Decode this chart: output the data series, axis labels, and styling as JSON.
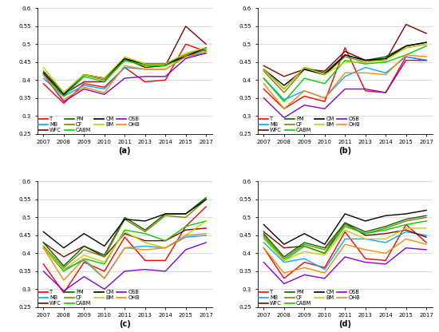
{
  "years": [
    2007,
    2008,
    2009,
    2010,
    2011,
    2013,
    2014,
    2015,
    2017
  ],
  "series_colors": {
    "T": "#ff0000",
    "MB": "#00aaff",
    "WFC": "#800000",
    "PM": "#006400",
    "CF": "#808000",
    "CABM": "#00cc00",
    "CM": "#000000",
    "BM": "#cccc00",
    "OSB": "#8800cc",
    "OHB": "#ff8800"
  },
  "panel_a": {
    "T": [
      0.39,
      0.335,
      0.39,
      0.38,
      0.435,
      0.395,
      0.4,
      0.5,
      0.48
    ],
    "MB": [
      0.405,
      0.355,
      0.385,
      0.375,
      0.435,
      0.43,
      0.43,
      0.465,
      0.475
    ],
    "WFC": [
      0.415,
      0.36,
      0.395,
      0.395,
      0.46,
      0.435,
      0.44,
      0.55,
      0.5
    ],
    "PM": [
      0.425,
      0.365,
      0.415,
      0.405,
      0.455,
      0.445,
      0.445,
      0.47,
      0.49
    ],
    "CF": [
      0.42,
      0.355,
      0.415,
      0.4,
      0.455,
      0.44,
      0.44,
      0.47,
      0.49
    ],
    "CABM": [
      0.415,
      0.355,
      0.41,
      0.395,
      0.455,
      0.44,
      0.44,
      0.465,
      0.485
    ],
    "CM": [
      0.42,
      0.36,
      0.415,
      0.405,
      0.46,
      0.445,
      0.445,
      0.465,
      0.49
    ],
    "BM": [
      0.435,
      0.365,
      0.415,
      0.405,
      0.465,
      0.445,
      0.445,
      0.475,
      0.49
    ],
    "OSB": [
      0.415,
      0.34,
      0.375,
      0.36,
      0.405,
      0.41,
      0.41,
      0.46,
      0.475
    ],
    "OHB": [
      0.415,
      0.345,
      0.38,
      0.365,
      0.44,
      0.43,
      0.43,
      0.465,
      0.48
    ]
  },
  "panel_b": {
    "T": [
      0.375,
      0.32,
      0.355,
      0.34,
      0.49,
      0.37,
      0.365,
      0.465,
      0.455
    ],
    "MB": [
      0.405,
      0.345,
      0.37,
      0.35,
      0.41,
      0.435,
      0.42,
      0.465,
      0.455
    ],
    "WFC": [
      0.44,
      0.41,
      0.43,
      0.425,
      0.48,
      0.455,
      0.455,
      0.555,
      0.53
    ],
    "PM": [
      0.43,
      0.375,
      0.435,
      0.42,
      0.47,
      0.455,
      0.465,
      0.495,
      0.505
    ],
    "CF": [
      0.425,
      0.365,
      0.43,
      0.415,
      0.465,
      0.45,
      0.46,
      0.49,
      0.5
    ],
    "CABM": [
      0.405,
      0.34,
      0.405,
      0.39,
      0.455,
      0.445,
      0.45,
      0.47,
      0.495
    ],
    "CM": [
      0.43,
      0.385,
      0.43,
      0.415,
      0.47,
      0.455,
      0.46,
      0.495,
      0.505
    ],
    "BM": [
      0.43,
      0.375,
      0.435,
      0.415,
      0.45,
      0.45,
      0.455,
      0.49,
      0.5
    ],
    "OSB": [
      0.35,
      0.295,
      0.33,
      0.32,
      0.375,
      0.375,
      0.365,
      0.455,
      0.455
    ],
    "OHB": [
      0.39,
      0.32,
      0.37,
      0.35,
      0.42,
      0.42,
      0.415,
      0.47,
      0.465
    ]
  },
  "panel_c": {
    "T": [
      0.37,
      0.29,
      0.375,
      0.35,
      0.445,
      0.38,
      0.38,
      0.475,
      0.53
    ],
    "MB": [
      0.415,
      0.355,
      0.38,
      0.33,
      0.415,
      0.42,
      0.415,
      0.445,
      0.45
    ],
    "WFC": [
      0.43,
      0.39,
      0.42,
      0.39,
      0.455,
      0.435,
      0.435,
      0.465,
      0.47
    ],
    "PM": [
      0.43,
      0.365,
      0.42,
      0.395,
      0.5,
      0.465,
      0.51,
      0.51,
      0.555
    ],
    "CF": [
      0.42,
      0.36,
      0.41,
      0.39,
      0.495,
      0.46,
      0.505,
      0.5,
      0.55
    ],
    "CABM": [
      0.415,
      0.35,
      0.385,
      0.37,
      0.465,
      0.455,
      0.435,
      0.475,
      0.49
    ],
    "CM": [
      0.46,
      0.415,
      0.455,
      0.42,
      0.495,
      0.49,
      0.51,
      0.51,
      0.55
    ],
    "BM": [
      0.415,
      0.355,
      0.395,
      0.375,
      0.46,
      0.43,
      0.415,
      0.45,
      0.49
    ],
    "OSB": [
      0.35,
      0.295,
      0.335,
      0.3,
      0.35,
      0.355,
      0.35,
      0.41,
      0.43
    ],
    "OHB": [
      0.415,
      0.325,
      0.385,
      0.33,
      0.415,
      0.41,
      0.415,
      0.45,
      0.455
    ]
  },
  "panel_d": {
    "T": [
      0.415,
      0.33,
      0.375,
      0.36,
      0.46,
      0.385,
      0.38,
      0.48,
      0.43
    ],
    "MB": [
      0.43,
      0.375,
      0.385,
      0.355,
      0.44,
      0.44,
      0.43,
      0.46,
      0.45
    ],
    "WFC": [
      0.46,
      0.415,
      0.42,
      0.4,
      0.485,
      0.45,
      0.455,
      0.465,
      0.445
    ],
    "PM": [
      0.455,
      0.39,
      0.43,
      0.415,
      0.485,
      0.46,
      0.475,
      0.495,
      0.505
    ],
    "CF": [
      0.45,
      0.385,
      0.425,
      0.41,
      0.48,
      0.455,
      0.47,
      0.49,
      0.5
    ],
    "CABM": [
      0.445,
      0.38,
      0.42,
      0.4,
      0.475,
      0.455,
      0.465,
      0.48,
      0.49
    ],
    "CM": [
      0.48,
      0.425,
      0.455,
      0.425,
      0.51,
      0.49,
      0.505,
      0.51,
      0.52
    ],
    "BM": [
      0.44,
      0.38,
      0.405,
      0.395,
      0.465,
      0.44,
      0.44,
      0.47,
      0.47
    ],
    "OSB": [
      0.375,
      0.315,
      0.34,
      0.33,
      0.39,
      0.375,
      0.37,
      0.415,
      0.41
    ],
    "OHB": [
      0.415,
      0.345,
      0.36,
      0.345,
      0.425,
      0.41,
      0.4,
      0.44,
      0.425
    ]
  },
  "ylim": [
    0.25,
    0.6
  ],
  "yticks": [
    0.25,
    0.3,
    0.35,
    0.4,
    0.45,
    0.5,
    0.55,
    0.6
  ],
  "ytick_labels": [
    "0.25",
    "0.3",
    "0.35",
    "0.4",
    "0.45",
    "0.5",
    "0.55",
    "0.6"
  ],
  "subplot_labels": [
    "(a)",
    "(b)",
    "(c)",
    "(d)"
  ],
  "legend_row1": [
    "T",
    "MB",
    "WFC",
    "PM"
  ],
  "legend_row2": [
    "CF",
    "CABM",
    "CM",
    "BM"
  ],
  "legend_row3": [
    "OSB",
    "OHB"
  ]
}
